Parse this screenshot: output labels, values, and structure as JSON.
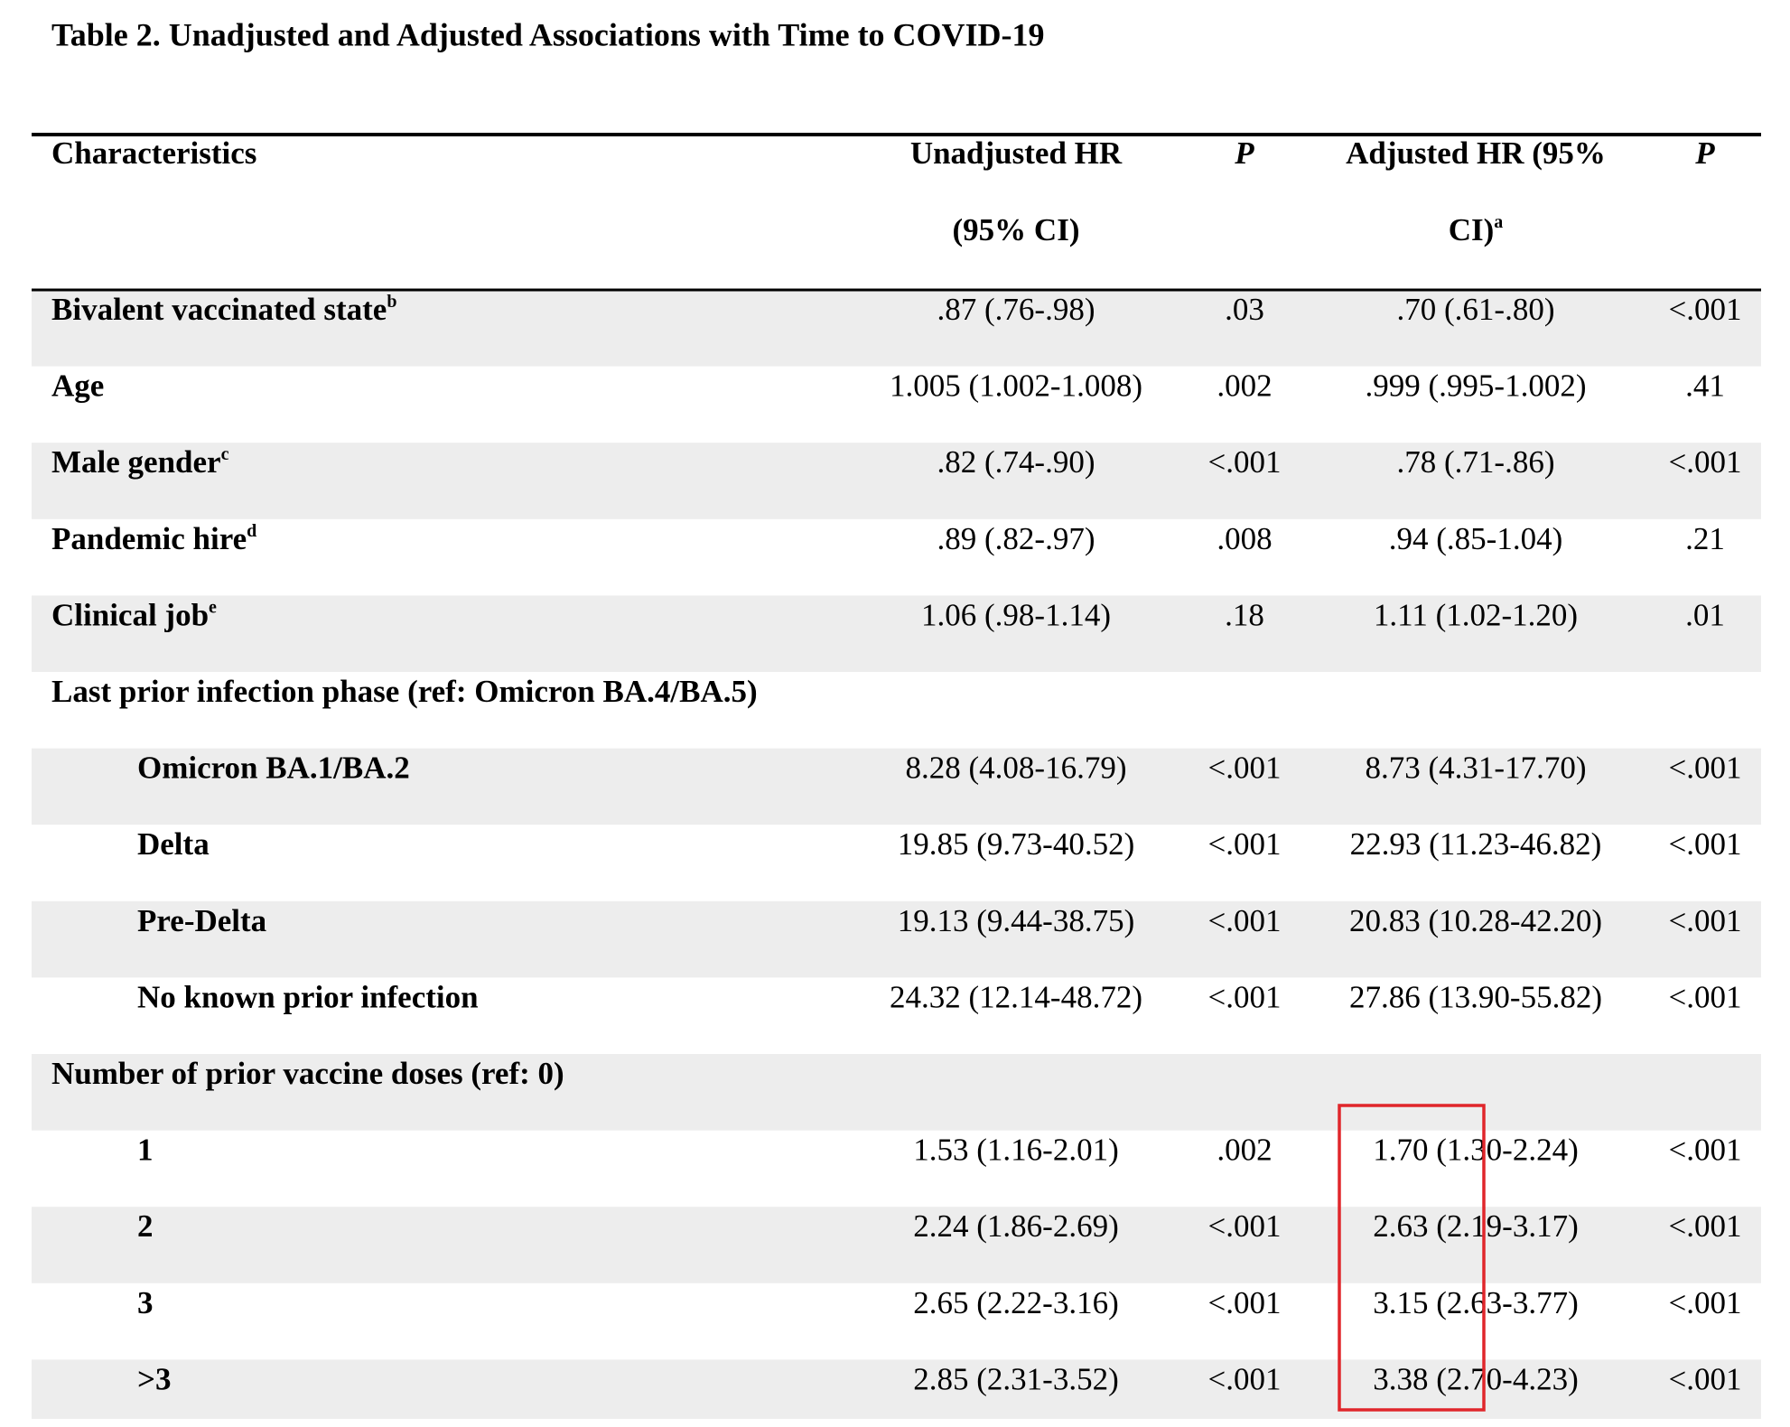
{
  "title": "Table 2. Unadjusted and Adjusted Associations with Time to COVID-19",
  "table": {
    "header": [
      {
        "lines": [
          "Characteristics"
        ]
      },
      {
        "lines": [
          "Unadjusted HR",
          "(95% CI)"
        ]
      },
      {
        "lines": [
          "P"
        ],
        "italic": true
      },
      {
        "lines": [
          "Adjusted HR (95%",
          "CI)"
        ],
        "sup": "a"
      },
      {
        "lines": [
          "P"
        ],
        "italic": true
      }
    ],
    "rows": [
      {
        "label": "Bivalent vaccinated state",
        "sup": "b",
        "cells": [
          ".87 (.76-.98)",
          ".03",
          ".70 (.61-.80)",
          "<.001"
        ]
      },
      {
        "label": "Age",
        "cells": [
          "1.005 (1.002-1.008)",
          ".002",
          ".999 (.995-1.002)",
          ".41"
        ]
      },
      {
        "label": "Male gender",
        "sup": "c",
        "cells": [
          ".82 (.74-.90)",
          "<.001",
          ".78 (.71-.86)",
          "<.001"
        ]
      },
      {
        "label": "Pandemic hire",
        "sup": "d",
        "cells": [
          ".89 (.82-.97)",
          ".008",
          ".94 (.85-1.04)",
          ".21"
        ]
      },
      {
        "label": "Clinical job",
        "sup": "e",
        "cells": [
          "1.06 (.98-1.14)",
          ".18",
          "1.11 (1.02-1.20)",
          ".01"
        ]
      },
      {
        "label": "Last prior infection phase (ref: Omicron BA.4/BA.5)"
      },
      {
        "label": "Omicron BA.1/BA.2",
        "indent": true,
        "cells": [
          "8.28 (4.08-16.79)",
          "<.001",
          "8.73 (4.31-17.70)",
          "<.001"
        ]
      },
      {
        "label": "Delta",
        "indent": true,
        "cells": [
          "19.85 (9.73-40.52)",
          "<.001",
          "22.93 (11.23-46.82)",
          "<.001"
        ]
      },
      {
        "label": "Pre-Delta",
        "indent": true,
        "cells": [
          "19.13 (9.44-38.75)",
          "<.001",
          "20.83 (10.28-42.20)",
          "<.001"
        ]
      },
      {
        "label": "No known prior infection",
        "indent": true,
        "cells": [
          "24.32 (12.14-48.72)",
          "<.001",
          "27.86 (13.90-55.82)",
          "<.001"
        ]
      },
      {
        "label": "Number of prior vaccine doses (ref: 0)"
      },
      {
        "label": "1",
        "indent": true,
        "cells": [
          "1.53 (1.16-2.01)",
          ".002",
          "1.70 (1.30-2.24)",
          "<.001"
        ]
      },
      {
        "label": "2",
        "indent": true,
        "cells": [
          "2.24 (1.86-2.69)",
          "<.001",
          "2.63 (2.19-3.17)",
          "<.001"
        ]
      },
      {
        "label": "3",
        "indent": true,
        "cells": [
          "2.65 (2.22-3.16)",
          "<.001",
          "3.15 (2.63-3.77)",
          "<.001"
        ]
      },
      {
        "label": ">3",
        "indent": true,
        "cells": [
          "2.85 (2.31-3.52)",
          "<.001",
          "3.38 (2.70-4.23)",
          "<.001"
        ]
      }
    ]
  }
}
